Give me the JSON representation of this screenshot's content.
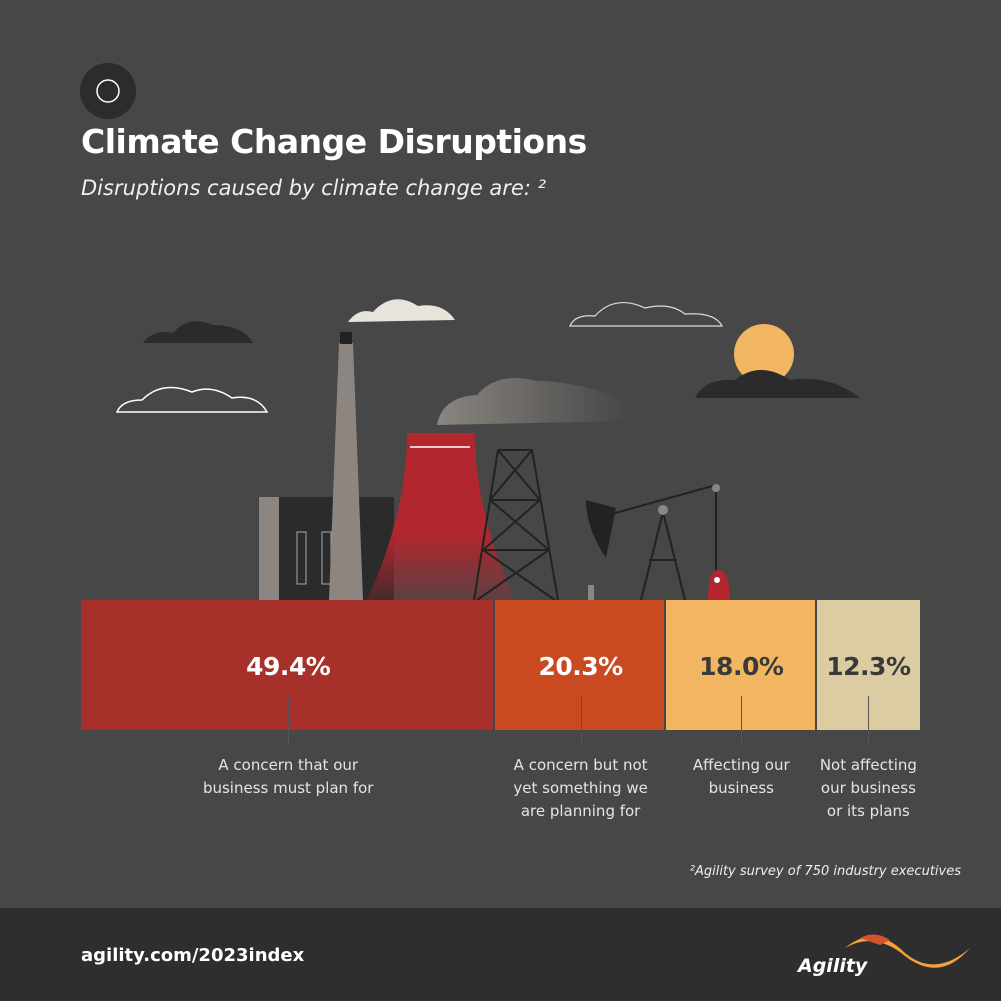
{
  "header": {
    "title": "Climate Change Disruptions",
    "subtitle": "Disruptions caused by climate change are: ²"
  },
  "chart_data": {
    "type": "stacked-bar",
    "categories": [
      "A concern that our business must plan for",
      "A concern but not yet something we are planning for",
      "Affecting our business",
      "Not affecting our business or its plans"
    ],
    "values": [
      49.4,
      20.3,
      18.0,
      12.3
    ],
    "value_labels": [
      "49.4%",
      "20.3%",
      "18.0%",
      "12.3%"
    ],
    "colors": [
      "#a8302a",
      "#c94a20",
      "#f2b662",
      "#dccca2"
    ]
  },
  "footnote": "²Agility survey of 750 industry executives",
  "footer": {
    "url": "agility.com/2023index",
    "brand": "Agility"
  }
}
